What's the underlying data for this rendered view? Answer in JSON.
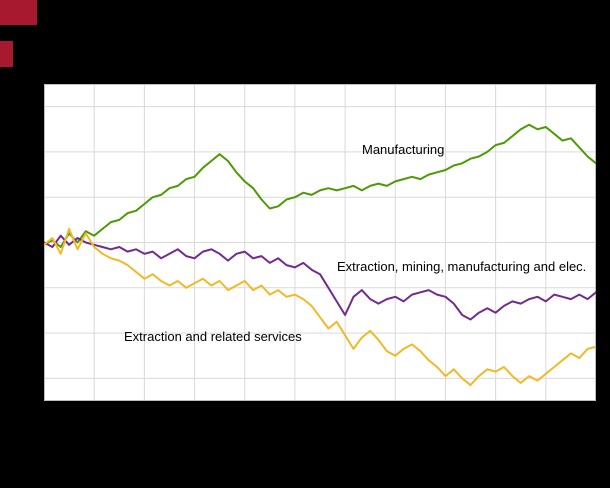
{
  "colors": {
    "background": "#000000",
    "plot_background": "#ffffff",
    "gridline": "#d9d9d9",
    "plot_border": "#bdbdbd",
    "logo_red": "#a6192e",
    "manufacturing_green": "#4e9a06",
    "extraction_mining_purple": "#722b8e",
    "extraction_services_yellow": "#f2b927"
  },
  "chart_data": {
    "type": "line",
    "title": "",
    "xlabel": "",
    "ylabel": "",
    "ylim": [
      65,
      135
    ],
    "y_grid_step": 10,
    "x_gridline_columns": 11,
    "grid": true,
    "legend_position": "inline-annotations",
    "series": [
      {
        "name": "Manufacturing",
        "color": "#4e9a06",
        "values": [
          99.5,
          100.5,
          99,
          102,
          100,
          102.5,
          101.5,
          103,
          104.5,
          105,
          106.5,
          107,
          108.5,
          110,
          110.5,
          112,
          112.5,
          114,
          114.5,
          116.5,
          118,
          119.5,
          118,
          115.5,
          113.5,
          112,
          109.5,
          107.5,
          108,
          109.5,
          110,
          111,
          110.5,
          111.5,
          112,
          111.5,
          112,
          112.5,
          111.5,
          112.5,
          113,
          112.5,
          113.5,
          114,
          114.5,
          114,
          115,
          115.5,
          116,
          117,
          117.5,
          118.5,
          119,
          120,
          121.5,
          122,
          123.5,
          125,
          126,
          125,
          125.5,
          124,
          122.5,
          123,
          121,
          119,
          117.5
        ]
      },
      {
        "name": "Extraction,  mining,  manufacturing  and elec.",
        "color": "#722b8e",
        "values": [
          100,
          99,
          101.5,
          99.5,
          101,
          100,
          99.5,
          99,
          98.5,
          99,
          98,
          98.5,
          97.5,
          98,
          96.5,
          97.5,
          98.5,
          97,
          96.5,
          98,
          98.5,
          97.5,
          96,
          97.5,
          98,
          96.5,
          97,
          95.5,
          96.5,
          95,
          94.5,
          95.5,
          94,
          93,
          90,
          87,
          84,
          88,
          89.5,
          87.5,
          86.5,
          87.5,
          88,
          87,
          88.5,
          89,
          89.5,
          88.5,
          88,
          86.5,
          84,
          83,
          84.5,
          85.5,
          84.5,
          86,
          87,
          86.5,
          87.5,
          88,
          87,
          88.5,
          88,
          87.5,
          88.5,
          87.5,
          89
        ]
      },
      {
        "name": "Extraction and related  services",
        "color": "#f2b927",
        "values": [
          99.5,
          101,
          97.5,
          103,
          98.5,
          102,
          99,
          97.5,
          96.5,
          96,
          95,
          93.5,
          92,
          93,
          91.5,
          90.5,
          91.5,
          90,
          91,
          92,
          90.5,
          91.5,
          89.5,
          90.5,
          91.5,
          89.5,
          90.5,
          88.5,
          89.5,
          88,
          88.5,
          87.5,
          86,
          83.5,
          81,
          82.5,
          79.5,
          76.5,
          79,
          80.5,
          78.5,
          76,
          75,
          76.5,
          77.5,
          76,
          74,
          72.5,
          70.5,
          72,
          70,
          68.5,
          70.5,
          72,
          71.5,
          72.5,
          70.5,
          69,
          70.5,
          69.5,
          71,
          72.5,
          74,
          75.5,
          74.5,
          76.5,
          77
        ]
      }
    ],
    "annotations": [
      {
        "text": "Manufacturing"
      },
      {
        "text": "Extraction,  mining,  manufacturing  and elec."
      },
      {
        "text": "Extraction and related  services"
      }
    ]
  }
}
